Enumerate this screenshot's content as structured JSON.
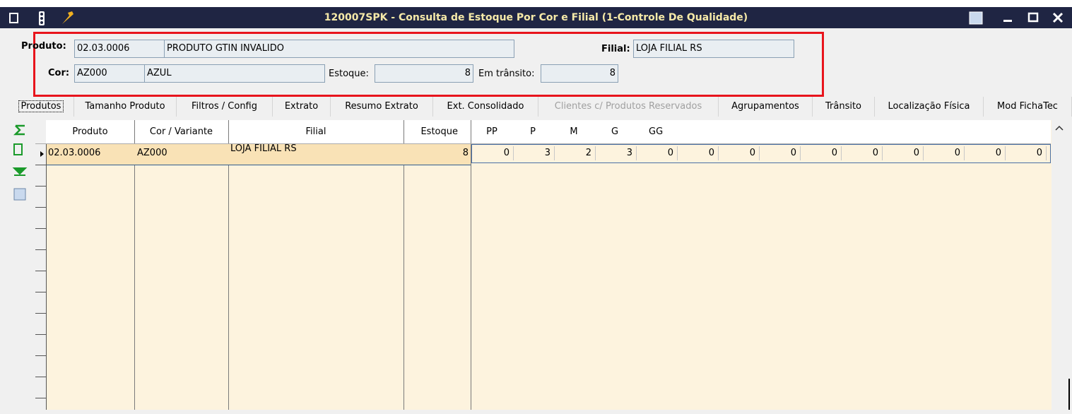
{
  "window": {
    "title": "120007SPK - Consulta de Estoque Por Cor e Filial (1-Controle De Qualidade)"
  },
  "form": {
    "produto_label": "Produto:",
    "produto_code": "02.03.0006",
    "produto_desc": "PRODUTO GTIN INVALIDO",
    "filial_label": "Filial:",
    "filial_value": "LOJA FILIAL RS",
    "cor_label": "Cor:",
    "cor_code": "AZ000",
    "cor_desc": "AZUL",
    "estoque_label": "Estoque:",
    "estoque_value": 8,
    "transito_label": "Em trânsito:",
    "transito_value": 8
  },
  "tabs": [
    {
      "label": "Produtos",
      "state": "selected"
    },
    {
      "label": "Tamanho Produto",
      "state": "normal"
    },
    {
      "label": "Filtros / Config",
      "state": "normal"
    },
    {
      "label": "Extrato",
      "state": "normal"
    },
    {
      "label": "Resumo Extrato",
      "state": "normal"
    },
    {
      "label": "Ext. Consolidado",
      "state": "normal"
    },
    {
      "label": "Clientes c/ Produtos Reservados",
      "state": "disabled"
    },
    {
      "label": "Agrupamentos",
      "state": "normal"
    },
    {
      "label": "Trânsito",
      "state": "normal"
    },
    {
      "label": "Localização Física",
      "state": "normal"
    },
    {
      "label": "Mod FichaTec",
      "state": "normal"
    }
  ],
  "grid": {
    "columns": [
      "Produto",
      "Cor / Variante",
      "Filial",
      "Estoque"
    ],
    "size_columns": [
      "PP",
      "P",
      "M",
      "G",
      "GG"
    ],
    "rows": [
      {
        "produto": "02.03.0006",
        "cor": "AZ000",
        "filial": "LOJA FILIAL RS",
        "estoque": 8,
        "sizes": [
          0,
          3,
          2,
          3,
          0,
          0,
          0,
          0,
          0,
          0,
          0,
          0,
          0,
          0
        ]
      }
    ]
  }
}
